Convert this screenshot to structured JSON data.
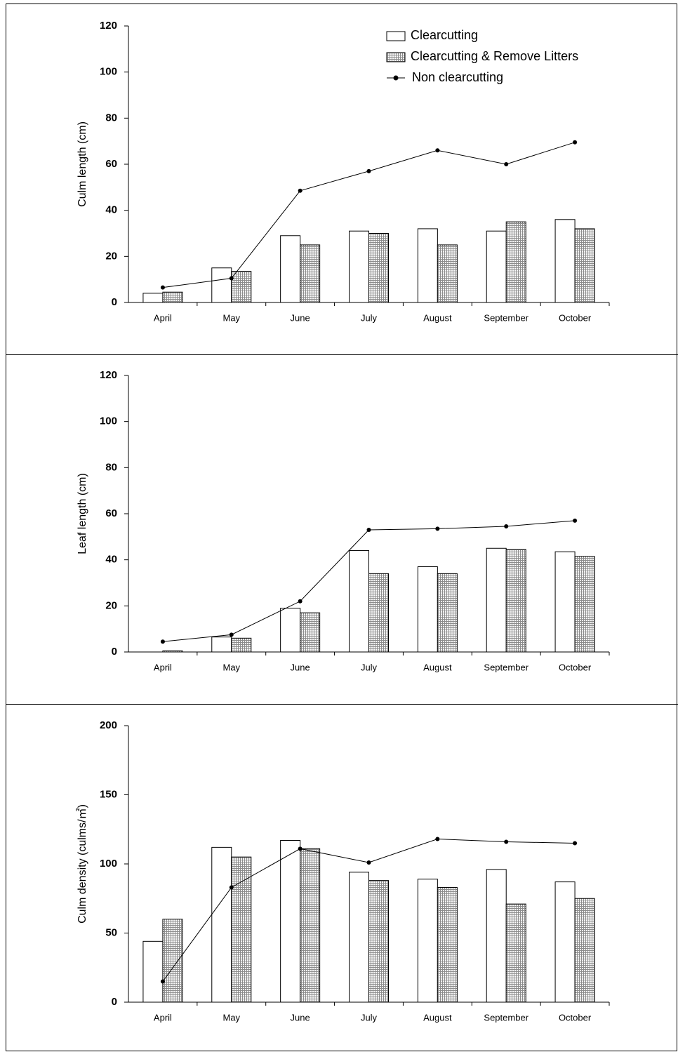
{
  "chart_data": [
    {
      "type": "bar",
      "ylabel": "Culm length (cm)",
      "categories": [
        "April",
        "May",
        "June",
        "July",
        "August",
        "September",
        "October"
      ],
      "ylim": [
        0,
        120
      ],
      "yticks": [
        0,
        20,
        40,
        60,
        80,
        100,
        120
      ],
      "legend": "top-right",
      "series": [
        {
          "name": "Clearcutting",
          "type": "bar",
          "color": "#ffffff",
          "values": [
            4,
            15,
            29,
            31,
            32,
            31,
            36
          ]
        },
        {
          "name": "Clearcutting & Remove Litters",
          "type": "bar",
          "color": "#8c8c8c",
          "pattern": "hatch",
          "values": [
            4.5,
            13.5,
            25,
            30,
            25,
            35,
            32
          ]
        },
        {
          "name": "Non clearcutting",
          "type": "line",
          "color": "#000000",
          "values": [
            6.5,
            10.5,
            48.5,
            57,
            66,
            60,
            69.5
          ]
        }
      ]
    },
    {
      "type": "bar",
      "ylabel": "Leaf length (cm)",
      "categories": [
        "April",
        "May",
        "June",
        "July",
        "August",
        "September",
        "October"
      ],
      "ylim": [
        0,
        120
      ],
      "yticks": [
        0,
        20,
        40,
        60,
        80,
        100,
        120
      ],
      "series": [
        {
          "type": "bar",
          "color": "#ffffff",
          "values": [
            0,
            6.5,
            19,
            44,
            37,
            45,
            43.5
          ]
        },
        {
          "type": "bar",
          "color": "#8c8c8c",
          "pattern": "hatch",
          "values": [
            0.5,
            6,
            17,
            34,
            34,
            44.5,
            41.5
          ]
        },
        {
          "type": "line",
          "color": "#000000",
          "values": [
            4.5,
            7.5,
            22,
            53,
            53.5,
            54.5,
            57
          ]
        }
      ]
    },
    {
      "type": "bar",
      "ylabel": "Culm density (culms/㎡)",
      "categories": [
        "April",
        "May",
        "June",
        "July",
        "August",
        "September",
        "October"
      ],
      "ylim": [
        0,
        200
      ],
      "yticks": [
        0,
        50,
        100,
        150,
        200
      ],
      "series": [
        {
          "type": "bar",
          "color": "#ffffff",
          "values": [
            44,
            112,
            117,
            94,
            89,
            96,
            87
          ]
        },
        {
          "type": "bar",
          "color": "#8c8c8c",
          "pattern": "hatch",
          "values": [
            60,
            105,
            111,
            88,
            83,
            71,
            75
          ]
        },
        {
          "type": "line",
          "color": "#000000",
          "values": [
            15,
            83,
            111,
            101,
            118,
            116,
            115
          ]
        }
      ]
    }
  ]
}
